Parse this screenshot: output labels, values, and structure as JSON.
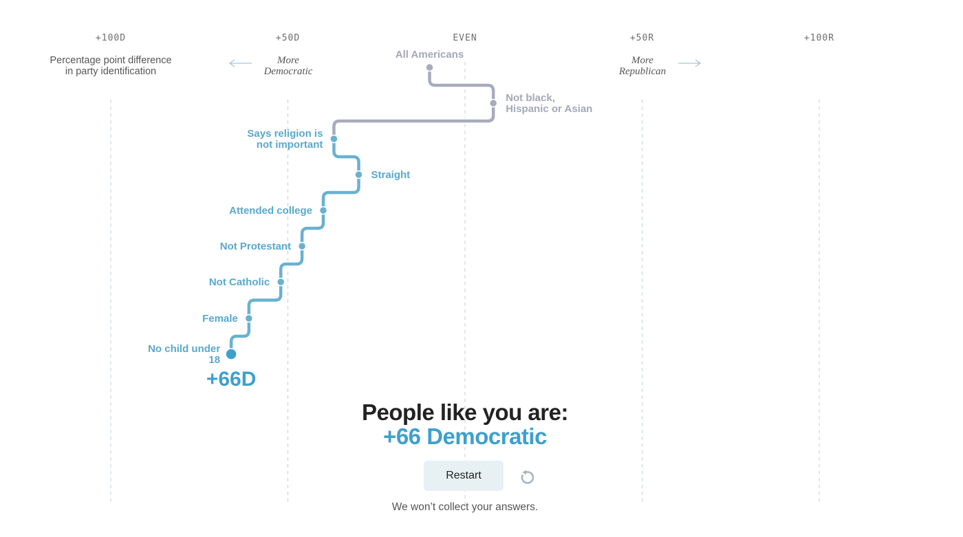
{
  "chart_data": {
    "type": "line",
    "x_axis": {
      "range": [
        100,
        -100
      ],
      "ticks": [
        {
          "value": 100,
          "label": "+100D"
        },
        {
          "value": 50,
          "label": "+50D"
        },
        {
          "value": 0,
          "label": "EVEN"
        },
        {
          "value": -50,
          "label": "+50R"
        },
        {
          "value": -100,
          "label": "+100R"
        }
      ]
    },
    "axis_note": [
      "Percentage point difference",
      "in party identification"
    ],
    "direction_labels": {
      "democratic": [
        "More",
        "Democratic"
      ],
      "republican": [
        "More",
        "Republican"
      ]
    },
    "steps": [
      {
        "label": [
          "All Americans"
        ],
        "value": 10
      },
      {
        "label": [
          "Not black,",
          "Hispanic or Asian"
        ],
        "value": -8
      },
      {
        "label": [
          "Says religion is",
          "not important"
        ],
        "value": 37
      },
      {
        "label": [
          "Straight"
        ],
        "value": 30
      },
      {
        "label": [
          "Attended college"
        ],
        "value": 40
      },
      {
        "label": [
          "Not Protestant"
        ],
        "value": 46
      },
      {
        "label": [
          "Not Catholic"
        ],
        "value": 52
      },
      {
        "label": [
          "Female"
        ],
        "value": 61
      },
      {
        "label": [
          "No child under",
          "18"
        ],
        "value": 66
      }
    ],
    "final_label": "+66D",
    "colors": {
      "neutral": "#a7abbc",
      "democratic": "#69b1d1",
      "democratic_dark": "#3ea0cc",
      "grid": "#bcd2dc",
      "arrow": "#a9c7d6"
    }
  },
  "result": {
    "heading": "People like you are:",
    "value": "+66 Democratic"
  },
  "restart": {
    "label": "Restart",
    "icon": "restart-icon"
  },
  "privacy_note": "We won’t collect your answers."
}
